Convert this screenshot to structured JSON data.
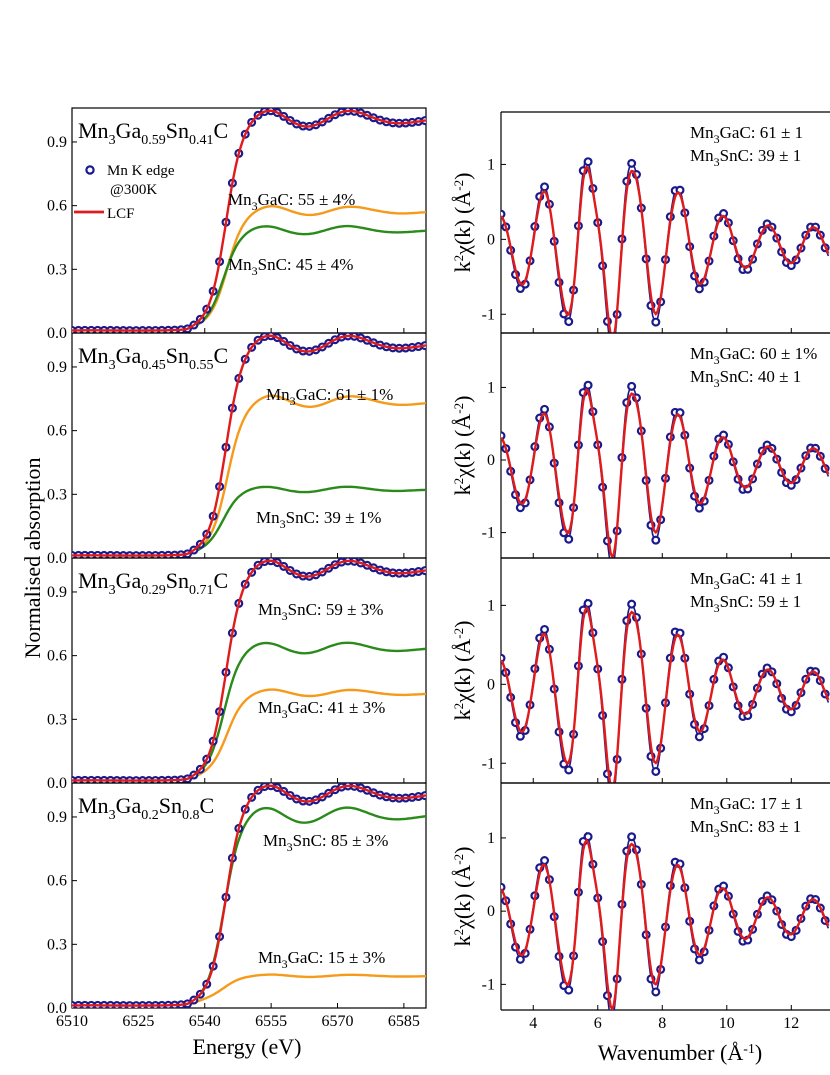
{
  "figure": {
    "ylabel_left": "Normalised absorption",
    "xlabel_left": "Energy (eV)",
    "xlabel_right_prefix": "Wavenumber (",
    "xlabel_right_unit": "Å",
    "xlabel_right_exp": "-1",
    "xlabel_right_suffix": ")",
    "colors": {
      "data": "#1a1a8c",
      "fit": "#e01b1b",
      "mn3gac": "#f59a1a",
      "mn3snc": "#2a8a1a"
    }
  },
  "legend": {
    "data_label": "Mn K edge",
    "data_label2": "@300K",
    "fit_label": "LCF"
  },
  "chart_data": [
    {
      "type": "line",
      "xlabel": "Energy (eV)",
      "ylabel": "Normalised absorption",
      "xlim": [
        6510,
        6590
      ],
      "xticks": [
        "6510",
        "6525",
        "6540",
        "6555",
        "6570",
        "6585"
      ],
      "panels": [
        {
          "title": {
            "a": "Mn",
            "s1": "3",
            "b": "Ga",
            "s2": "0.59",
            "c": "Sn",
            "s3": "0.41",
            "d": "C"
          },
          "ylim": [
            0,
            1.06
          ],
          "yticks": [
            "0.0",
            "0.3",
            "0.6",
            "0.9"
          ],
          "annotations": [
            {
              "pre": "Mn",
              "sub": "3",
              "post": "GaC: 55 ± 4%"
            },
            {
              "pre": "Mn",
              "sub": "3",
              "post": "SnC: 45 ± 4%"
            }
          ],
          "mn3gac_peak": 0.57,
          "mn3snc_peak": 0.48,
          "fractions": {
            "Mn3GaC": 55,
            "Mn3SnC": 45
          }
        },
        {
          "title": {
            "a": "Mn",
            "s1": "3",
            "b": "Ga",
            "s2": "0.45",
            "c": "Sn",
            "s3": "0.55",
            "d": "C"
          },
          "ylim": [
            0,
            1.06
          ],
          "yticks": [
            "0.0",
            "0.3",
            "0.6",
            "0.9"
          ],
          "annotations": [
            {
              "pre": "Mn",
              "sub": "3",
              "post": "GaC: 61 ± 1%"
            },
            {
              "pre": "Mn",
              "sub": "3",
              "post": "SnC: 39 ± 1%"
            }
          ],
          "mn3gac_peak": 0.73,
          "mn3snc_peak": 0.32,
          "fractions": {
            "Mn3GaC": 61,
            "Mn3SnC": 39
          }
        },
        {
          "title": {
            "a": "Mn",
            "s1": "3",
            "b": "Ga",
            "s2": "0.29",
            "c": "Sn",
            "s3": "0.71",
            "d": "C"
          },
          "ylim": [
            0,
            1.06
          ],
          "yticks": [
            "0.0",
            "0.3",
            "0.6",
            "0.9"
          ],
          "annotations": [
            {
              "pre": "Mn",
              "sub": "3",
              "post": "SnC: 59 ± 3%"
            },
            {
              "pre": "Mn",
              "sub": "3",
              "post": "GaC: 41 ± 3%"
            }
          ],
          "mn3gac_peak": 0.42,
          "mn3snc_peak": 0.63,
          "fractions": {
            "Mn3GaC": 41,
            "Mn3SnC": 59
          }
        },
        {
          "title": {
            "a": "Mn",
            "s1": "3",
            "b": "Ga",
            "s2": "0.2",
            "c": "Sn",
            "s3": "0.8",
            "d": "C"
          },
          "ylim": [
            0,
            1.06
          ],
          "yticks": [
            "0.0",
            "0.3",
            "0.6",
            "0.9"
          ],
          "annotations": [
            {
              "pre": "Mn",
              "sub": "3",
              "post": "SnC: 85 ± 3%"
            },
            {
              "pre": "Mn",
              "sub": "3",
              "post": "GaC: 15 ± 3%"
            }
          ],
          "mn3gac_peak": 0.15,
          "mn3snc_peak": 0.9,
          "fractions": {
            "Mn3GaC": 15,
            "Mn3SnC": 85
          }
        }
      ]
    },
    {
      "type": "line",
      "xlabel": "Wavenumber (Å-1)",
      "ylabel": "k2χ(k) (Å-2)",
      "xlim": [
        3,
        13.2
      ],
      "xticks": [
        "4",
        "6",
        "8",
        "10",
        "12"
      ],
      "xtick_values": [
        4,
        6,
        8,
        10,
        12
      ],
      "panels": [
        {
          "ylim": [
            -1.25,
            1.7
          ],
          "yticks": [
            "-1",
            "0",
            "1"
          ],
          "ytick_values": [
            -1,
            0,
            1
          ],
          "annotations": [
            {
              "pre": "Mn",
              "sub": "3",
              "post": "GaC: 61 ± 1"
            },
            {
              "pre": "Mn",
              "sub": "3",
              "post": "SnC: 39 ± 1"
            }
          ],
          "fractions": {
            "Mn3GaC": 61,
            "Mn3SnC": 39
          }
        },
        {
          "ylim": [
            -1.35,
            1.75
          ],
          "yticks": [
            "-1",
            "0",
            "1"
          ],
          "ytick_values": [
            -1,
            0,
            1
          ],
          "annotations": [
            {
              "pre": "Mn",
              "sub": "3",
              "post": "GaC: 60 ± 1%"
            },
            {
              "pre": "Mn",
              "sub": "3",
              "post": "SnC: 40 ± 1"
            }
          ],
          "fractions": {
            "Mn3GaC": 60,
            "Mn3SnC": 40
          }
        },
        {
          "ylim": [
            -1.25,
            1.6
          ],
          "yticks": [
            "-1",
            "0",
            "1"
          ],
          "ytick_values": [
            -1,
            0,
            1
          ],
          "annotations": [
            {
              "pre": "Mn",
              "sub": "3",
              "post": "GaC: 41 ± 1"
            },
            {
              "pre": "Mn",
              "sub": "3",
              "post": "SnC: 59 ± 1"
            }
          ],
          "fractions": {
            "Mn3GaC": 41,
            "Mn3SnC": 59
          }
        },
        {
          "ylim": [
            -1.35,
            1.75
          ],
          "yticks": [
            "-1",
            "0",
            "1"
          ],
          "ytick_values": [
            -1,
            0,
            1
          ],
          "annotations": [
            {
              "pre": "Mn",
              "sub": "3",
              "post": "GaC: 17 ± 1"
            },
            {
              "pre": "Mn",
              "sub": "3",
              "post": "SnC: 83 ± 1"
            }
          ],
          "fractions": {
            "Mn3GaC": 17,
            "Mn3SnC": 83
          }
        }
      ]
    }
  ]
}
